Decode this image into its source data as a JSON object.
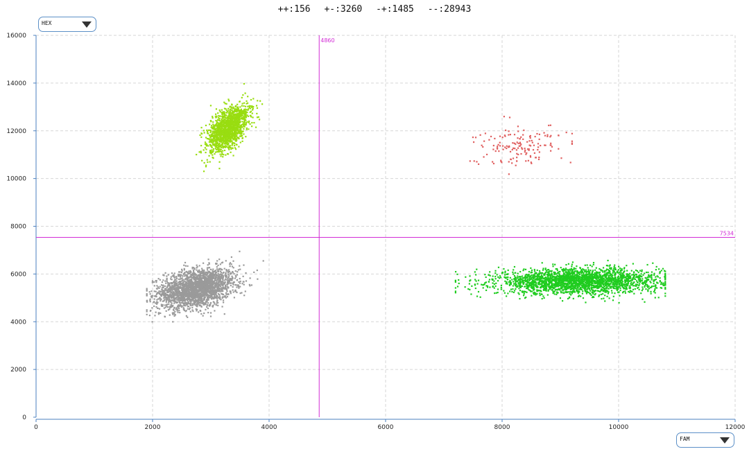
{
  "header": {
    "counts": [
      "++:156",
      "+-:3260",
      "-+:1485",
      "--:28943"
    ]
  },
  "y_channel": {
    "selected": "HEX"
  },
  "x_channel": {
    "selected": "FAM"
  },
  "chart_data": {
    "type": "scatter",
    "xlim": [
      0,
      12000
    ],
    "ylim": [
      0,
      16000
    ],
    "x_ticks": [
      0,
      2000,
      4000,
      6000,
      8000,
      10000,
      12000
    ],
    "y_ticks": [
      0,
      2000,
      4000,
      6000,
      8000,
      10000,
      12000,
      14000,
      16000
    ],
    "grid": true,
    "thresholds": {
      "x": {
        "value": 4860,
        "label": "4860",
        "color": "#d22bd6"
      },
      "y": {
        "value": 7534,
        "label": "7534",
        "color": "#d22bd6"
      }
    },
    "clusters": [
      {
        "name": "--",
        "color": "#9a9a9a",
        "count": 28943,
        "center": [
          2750,
          5400
        ],
        "spread": [
          330,
          420
        ],
        "rotation": 0.25,
        "x_range": [
          1900,
          3900
        ],
        "y_range": [
          4000,
          7400
        ]
      },
      {
        "name": "+-",
        "color": "#1fcc1f",
        "count": 3260,
        "center": [
          9300,
          5700
        ],
        "spread": [
          700,
          260
        ],
        "rotation": 0.02,
        "x_range": [
          7200,
          10800
        ],
        "y_range": [
          4400,
          7150
        ]
      },
      {
        "name": "-+",
        "color": "#99dd11",
        "count": 1485,
        "center": [
          3300,
          12100
        ],
        "spread": [
          160,
          500
        ],
        "rotation": 0.3,
        "x_range": [
          2250,
          3900
        ],
        "y_range": [
          8000,
          14250
        ]
      },
      {
        "name": "++",
        "color": "#e06060",
        "count": 156,
        "center": [
          8300,
          11400
        ],
        "spread": [
          380,
          420
        ],
        "rotation": 0.2,
        "x_range": [
          6550,
          9200
        ],
        "y_range": [
          9300,
          12600
        ]
      }
    ]
  }
}
